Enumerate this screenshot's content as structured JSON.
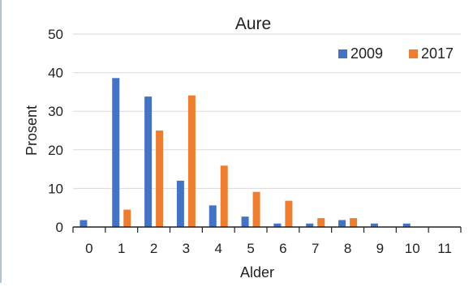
{
  "chart_data": {
    "type": "bar",
    "title": "Aure",
    "xlabel": "Alder",
    "ylabel": "Prosent",
    "categories": [
      "0",
      "1",
      "2",
      "3",
      "4",
      "5",
      "6",
      "7",
      "8",
      "9",
      "10",
      "11"
    ],
    "ylim": [
      0,
      50
    ],
    "yticks": [
      "0",
      "10",
      "20",
      "30",
      "40",
      "50"
    ],
    "grid": true,
    "legend_position": "top-right",
    "series": [
      {
        "name": "2009",
        "color": "#4472c4",
        "values": [
          1.8,
          38.6,
          33.8,
          12.0,
          5.6,
          2.7,
          0.9,
          0.9,
          1.8,
          0.9,
          0.9,
          0
        ]
      },
      {
        "name": "2017",
        "color": "#ed7d31",
        "values": [
          0,
          4.5,
          25.0,
          34.1,
          15.9,
          9.1,
          6.8,
          2.3,
          2.3,
          0,
          0,
          0
        ]
      }
    ]
  }
}
